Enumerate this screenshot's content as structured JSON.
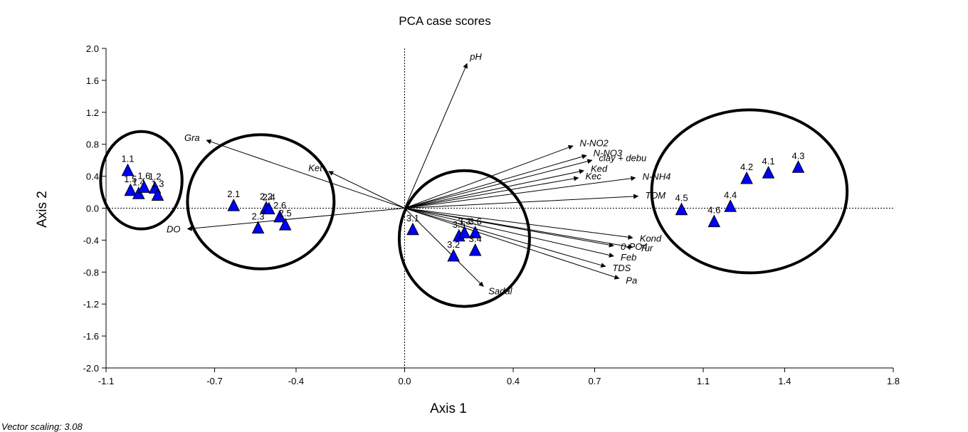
{
  "chart_data": {
    "type": "scatter",
    "title": "PCA case scores",
    "xlabel": "Axis 1",
    "ylabel": "Axis 2",
    "footnote": "Vector scaling: 3.08",
    "xlim": [
      -1.1,
      1.8
    ],
    "ylim": [
      -2.0,
      2.0
    ],
    "x_ticks": [
      "-1.1",
      "-0.7",
      "-0.4",
      "0.0",
      "0.4",
      "0.7",
      "1.1",
      "1.4",
      "1.8"
    ],
    "y_ticks": [
      "2.0",
      "1.6",
      "1.2",
      "0.8",
      "0.4",
      "0.0",
      "-0.4",
      "-0.8",
      "-1.2",
      "-1.6",
      "-2.0"
    ],
    "points": [
      {
        "label": "1.1",
        "x": -1.02,
        "y": 0.47
      },
      {
        "label": "1.5",
        "x": -1.01,
        "y": 0.22
      },
      {
        "label": "1.4",
        "x": -0.98,
        "y": 0.18
      },
      {
        "label": "1.6",
        "x": -0.96,
        "y": 0.26
      },
      {
        "label": "1.2",
        "x": -0.92,
        "y": 0.25
      },
      {
        "label": "1.3",
        "x": -0.91,
        "y": 0.16
      },
      {
        "label": "2.1",
        "x": -0.63,
        "y": 0.03
      },
      {
        "label": "2.2",
        "x": -0.51,
        "y": 0.0
      },
      {
        "label": "2.4",
        "x": -0.5,
        "y": -0.01
      },
      {
        "label": "2.3",
        "x": -0.54,
        "y": -0.25
      },
      {
        "label": "2.6",
        "x": -0.46,
        "y": -0.11
      },
      {
        "label": "2.5",
        "x": -0.44,
        "y": -0.21
      },
      {
        "label": "3.1",
        "x": 0.03,
        "y": -0.27
      },
      {
        "label": "3.5",
        "x": 0.2,
        "y": -0.35
      },
      {
        "label": "3.3",
        "x": 0.22,
        "y": -0.31
      },
      {
        "label": "3.6",
        "x": 0.26,
        "y": -0.31
      },
      {
        "label": "3.2",
        "x": 0.18,
        "y": -0.6
      },
      {
        "label": "3.4",
        "x": 0.26,
        "y": -0.53
      },
      {
        "label": "4.5",
        "x": 1.02,
        "y": -0.02
      },
      {
        "label": "4.6",
        "x": 1.14,
        "y": -0.17
      },
      {
        "label": "4.4",
        "x": 1.2,
        "y": 0.02
      },
      {
        "label": "4.2",
        "x": 1.26,
        "y": 0.37
      },
      {
        "label": "4.1",
        "x": 1.34,
        "y": 0.44
      },
      {
        "label": "4.3",
        "x": 1.45,
        "y": 0.51
      }
    ],
    "vectors": [
      {
        "label": "pH",
        "x": 0.23,
        "y": 1.81
      },
      {
        "label": "Gra",
        "x": -0.73,
        "y": 0.85
      },
      {
        "label": "Ket",
        "x": -0.28,
        "y": 0.46
      },
      {
        "label": "DO",
        "x": -0.8,
        "y": -0.26
      },
      {
        "label": "N-NO2",
        "x": 0.62,
        "y": 0.78
      },
      {
        "label": "N-NO3",
        "x": 0.67,
        "y": 0.66
      },
      {
        "label": "clay + debu",
        "x": 0.69,
        "y": 0.6
      },
      {
        "label": "Ked",
        "x": 0.66,
        "y": 0.47
      },
      {
        "label": "Kec",
        "x": 0.64,
        "y": 0.38
      },
      {
        "label": "N-NH4",
        "x": 0.85,
        "y": 0.38
      },
      {
        "label": "TOM",
        "x": 0.86,
        "y": 0.15
      },
      {
        "label": "Kond",
        "x": 0.84,
        "y": -0.37
      },
      {
        "label": "0-PO4",
        "x": 0.77,
        "y": -0.47
      },
      {
        "label": "Tur",
        "x": 0.84,
        "y": -0.49
      },
      {
        "label": "Feb",
        "x": 0.77,
        "y": -0.6
      },
      {
        "label": "TDS",
        "x": 0.74,
        "y": -0.73
      },
      {
        "label": "Pa",
        "x": 0.79,
        "y": -0.88
      },
      {
        "label": "Sadal",
        "x": 0.29,
        "y": -0.98
      }
    ],
    "groups": [
      {
        "cx": -0.97,
        "cy": 0.35,
        "rx": 0.15,
        "ry": 0.61
      },
      {
        "cx": -0.53,
        "cy": 0.08,
        "rx": 0.27,
        "ry": 0.84
      },
      {
        "cx": 0.22,
        "cy": -0.38,
        "rx": 0.24,
        "ry": 0.85
      },
      {
        "cx": 1.27,
        "cy": 0.21,
        "rx": 0.36,
        "ry": 1.02
      }
    ],
    "colors": {
      "marker": "#0000ff",
      "marker_edge": "#000000",
      "axis": "#000000"
    }
  }
}
